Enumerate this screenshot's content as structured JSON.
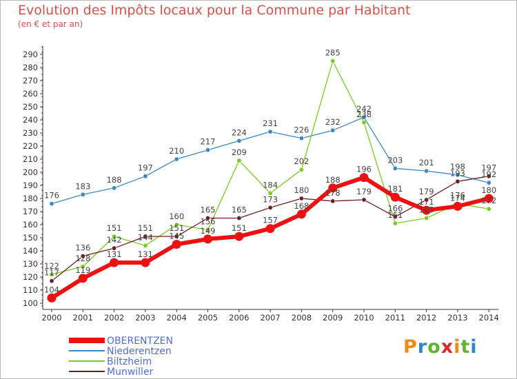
{
  "title": "Evolution des Impôts locaux pour la Commune par Habitant",
  "subtitle": "(en € et par an)",
  "logo": "Proxiti",
  "chart_data": {
    "type": "line",
    "x": [
      "2000",
      "2001",
      "2002",
      "2003",
      "2004",
      "2005",
      "2006",
      "2007",
      "2008",
      "2009",
      "2010",
      "2011",
      "2012",
      "2013",
      "2014"
    ],
    "ylim": [
      100,
      290
    ],
    "yticks": [
      100,
      110,
      120,
      130,
      140,
      150,
      160,
      170,
      180,
      190,
      200,
      210,
      220,
      230,
      240,
      250,
      260,
      270,
      280,
      290
    ],
    "grid": false,
    "legend": "bottom-left",
    "series": [
      {
        "name": "OBERENTZEN",
        "color": "#ee1111",
        "values": [
          104,
          119,
          131,
          131,
          145,
          149,
          151,
          157,
          168,
          188,
          196,
          181,
          171,
          174,
          180
        ]
      },
      {
        "name": "Niederentzen",
        "color": "#3a87c8",
        "values": [
          176,
          183,
          188,
          197,
          210,
          217,
          224,
          231,
          226,
          232,
          242,
          203,
          201,
          198,
          192
        ]
      },
      {
        "name": "Biltzheim",
        "color": "#77cc22",
        "values": [
          122,
          128,
          151,
          144,
          160,
          156,
          209,
          184,
          202,
          285,
          238,
          161,
          165,
          176,
          172
        ]
      },
      {
        "name": "Munwiller",
        "color": "#6e1e22",
        "values": [
          117,
          136,
          142,
          151,
          151,
          165,
          165,
          173,
          180,
          178,
          179,
          166,
          179,
          193,
          197
        ]
      }
    ]
  }
}
